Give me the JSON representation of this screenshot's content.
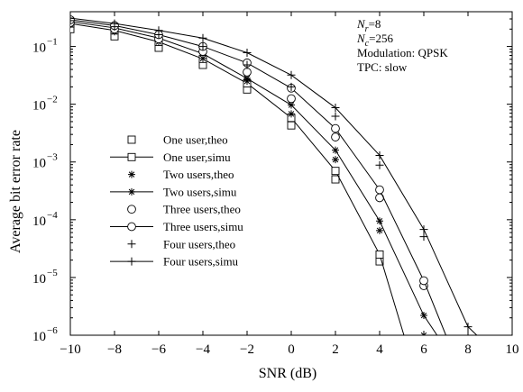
{
  "chart_data": {
    "type": "line",
    "title": "",
    "xlabel": "SNR (dB)",
    "ylabel": "Average bit error rate",
    "xlim": [
      -10,
      10
    ],
    "ylim": [
      1e-06,
      0.4
    ],
    "yscale": "log",
    "grid": false,
    "legend_position": "center-left",
    "x_ticks": [
      -10,
      -8,
      -6,
      -4,
      -2,
      0,
      2,
      4,
      6,
      8,
      10
    ],
    "x_tick_labels": [
      "−10",
      "−8",
      "−6",
      "−4",
      "−2",
      "0",
      "2",
      "4",
      "6",
      "8",
      "10"
    ],
    "y_ticks": [
      1e-06,
      1e-05,
      0.0001,
      0.001,
      0.01,
      0.1
    ],
    "y_tick_labels": [
      {
        "base": "10",
        "exp": "−6"
      },
      {
        "base": "10",
        "exp": "−5"
      },
      {
        "base": "10",
        "exp": "−4"
      },
      {
        "base": "10",
        "exp": "−3"
      },
      {
        "base": "10",
        "exp": "−2"
      },
      {
        "base": "10",
        "exp": "−1"
      }
    ],
    "annotations": [
      {
        "kind": "sub",
        "main": "N",
        "sub": "r",
        "rest": "=8"
      },
      {
        "kind": "sub",
        "main": "N",
        "sub": "c",
        "rest": "=256"
      },
      {
        "kind": "plain",
        "text": "Modulation: QPSK"
      },
      {
        "kind": "plain",
        "text": "TPC: slow"
      }
    ],
    "series": [
      {
        "name": "One user,theo",
        "marker": "square",
        "line": false,
        "x": [
          -10,
          -8,
          -6,
          -4,
          -2,
          0,
          2,
          4
        ],
        "y": [
          0.2,
          0.15,
          0.095,
          0.048,
          0.018,
          0.0043,
          0.0005,
          1.9e-05
        ]
      },
      {
        "name": "One user,simu",
        "marker": "square",
        "line": true,
        "x": [
          -10,
          -8,
          -6,
          -4,
          -2,
          0,
          2,
          4,
          5.1
        ],
        "y": [
          0.25,
          0.19,
          0.12,
          0.061,
          0.023,
          0.0058,
          0.0007,
          2.5e-05,
          1e-06
        ]
      },
      {
        "name": "Two users,theo",
        "marker": "asterisk",
        "line": false,
        "x": [
          -10,
          -8,
          -6,
          -4,
          -2,
          0,
          2,
          4,
          6
        ],
        "y": [
          0.24,
          0.18,
          0.12,
          0.062,
          0.025,
          0.0068,
          0.0011,
          6.5e-05,
          1e-06
        ]
      },
      {
        "name": "Two users,simu",
        "marker": "asterisk",
        "line": true,
        "x": [
          -10,
          -8,
          -6,
          -4,
          -2,
          0,
          2,
          4,
          6,
          6.6
        ],
        "y": [
          0.27,
          0.21,
          0.14,
          0.075,
          0.028,
          0.0097,
          0.0016,
          9.5e-05,
          2.2e-06,
          1e-06
        ]
      },
      {
        "name": "Three users,theo",
        "marker": "circle",
        "line": false,
        "x": [
          -10,
          -8,
          -6,
          -4,
          -2,
          0,
          2,
          4,
          6
        ],
        "y": [
          0.26,
          0.2,
          0.135,
          0.082,
          0.036,
          0.0125,
          0.0027,
          0.00024,
          7.2e-06
        ]
      },
      {
        "name": "Three users,simu",
        "marker": "circle",
        "line": true,
        "x": [
          -10,
          -8,
          -6,
          -4,
          -2,
          0,
          2,
          4,
          6,
          7
        ],
        "y": [
          0.29,
          0.23,
          0.16,
          0.1,
          0.052,
          0.019,
          0.0038,
          0.00033,
          8.8e-06,
          1e-06
        ]
      },
      {
        "name": "Four users,theo",
        "marker": "plus",
        "line": false,
        "x": [
          -10,
          -8,
          -6,
          -4,
          -2,
          0,
          2,
          4,
          6
        ],
        "y": [
          0.28,
          0.22,
          0.16,
          0.1,
          0.048,
          0.02,
          0.0062,
          0.00088,
          5.1e-05
        ]
      },
      {
        "name": "Four users,simu",
        "marker": "plus",
        "line": true,
        "x": [
          -10,
          -8,
          -6,
          -4,
          -2,
          0,
          2,
          4,
          6,
          8,
          8.4
        ],
        "y": [
          0.31,
          0.25,
          0.19,
          0.14,
          0.078,
          0.032,
          0.0087,
          0.0013,
          6.8e-05,
          1.4e-06,
          1e-06
        ]
      }
    ]
  }
}
